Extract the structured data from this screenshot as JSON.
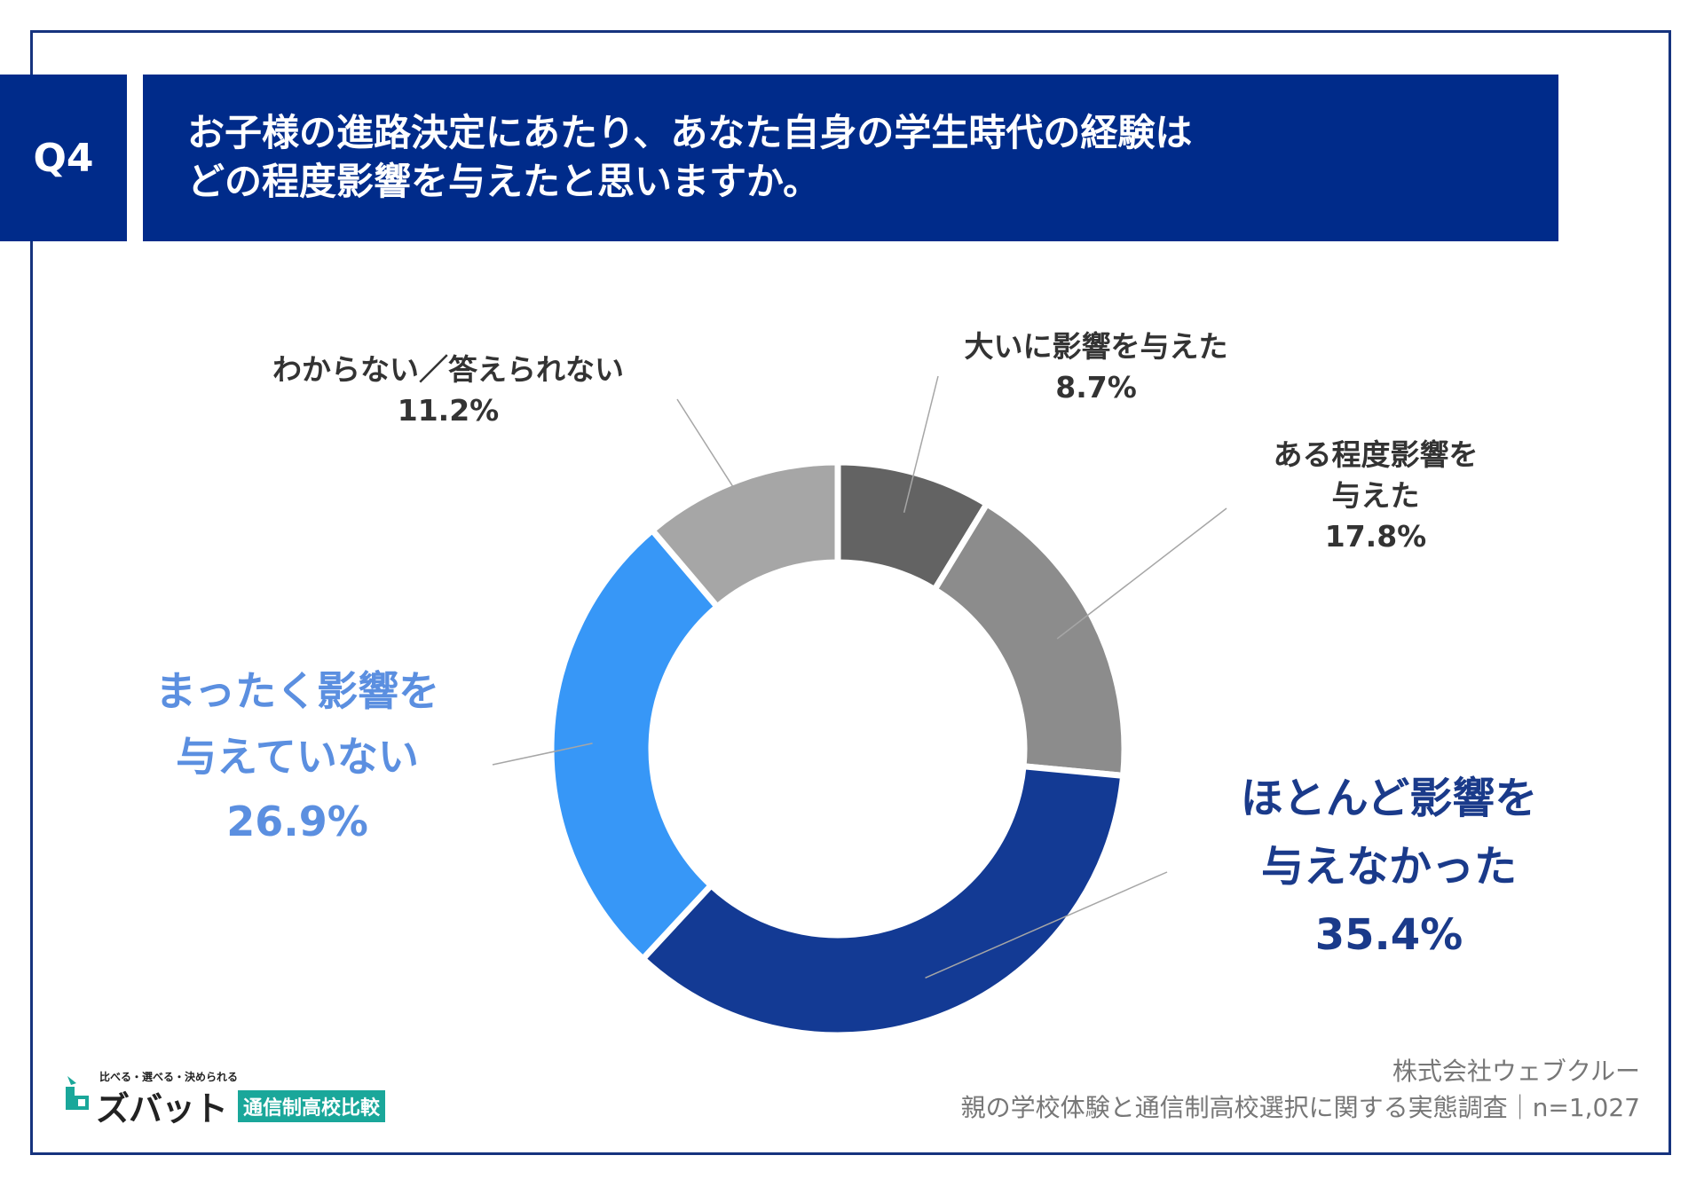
{
  "header": {
    "q_label": "Q4",
    "title_line1": "お子様の進路決定にあたり、あなた自身の学生時代の経験は",
    "title_line2": "どの程度影響を与えたと思いますか。"
  },
  "chart_data": {
    "type": "pie",
    "donut": true,
    "title": "",
    "slices": [
      {
        "label_lines": [
          "大いに影響を与えた"
        ],
        "label": "大いに影響を与えた",
        "value": 8.7,
        "value_label": "8.7%",
        "color": "#636363"
      },
      {
        "label_lines": [
          "ある程度影響を",
          "与えた"
        ],
        "label": "ある程度影響を与えた",
        "value": 17.8,
        "value_label": "17.8%",
        "color": "#8c8c8c"
      },
      {
        "label_lines": [
          "ほとんど影響を",
          "与えなかった"
        ],
        "label": "ほとんど影響を与えなかった",
        "value": 35.4,
        "value_label": "35.4%",
        "color": "#133a94"
      },
      {
        "label_lines": [
          "まったく影響を",
          "与えていない"
        ],
        "label": "まったく影響を与えていない",
        "value": 26.9,
        "value_label": "26.9%",
        "color": "#3797f7"
      },
      {
        "label_lines": [
          "わからない／答えられない"
        ],
        "label": "わからない／答えられない",
        "value": 11.2,
        "value_label": "11.2%",
        "color": "#a6a6a6"
      }
    ]
  },
  "logo": {
    "tagline": "比べる・選べる・決められる",
    "name": "ズバット",
    "sub": "通信制高校比較"
  },
  "source": {
    "company": "株式会社ウェブクルー",
    "survey": "親の学校体験と通信制高校選択に関する実態調査｜n=1,027"
  }
}
